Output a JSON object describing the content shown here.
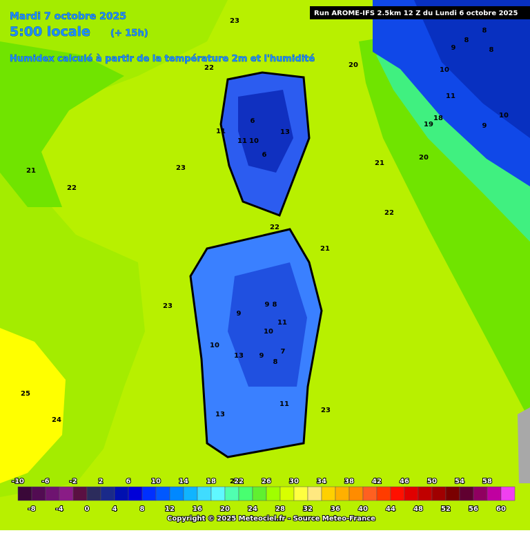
{
  "header": {
    "date": "Mardi 7 octobre 2025",
    "time": "5:00 locale",
    "lead": "(+ 15h)",
    "subtitle": "Humidex calculé à partir de la température 2m et l'humidité",
    "run": "Run AROME-IFS 2.5km 12 Z du Lundi 6 octobre 2025"
  },
  "contour_labels": [
    23,
    22,
    20,
    8,
    8,
    9,
    8,
    10,
    11,
    10,
    9,
    19,
    18,
    6,
    13,
    11,
    11,
    10,
    6,
    21,
    23,
    21,
    20,
    22,
    22,
    22,
    21,
    9,
    8,
    9,
    11,
    10,
    7,
    13,
    9,
    8,
    10,
    23,
    11,
    23,
    13,
    25,
    24,
    22
  ],
  "colorbar": {
    "ticks": [
      -10,
      -8,
      -6,
      -4,
      -2,
      0,
      2,
      4,
      6,
      8,
      10,
      12,
      14,
      16,
      18,
      20,
      22,
      24,
      26,
      28,
      30,
      32,
      34,
      36,
      38,
      40,
      42,
      44,
      46,
      48,
      50,
      52,
      54,
      56,
      58,
      60
    ],
    "colors": [
      "#3a0838",
      "#520c52",
      "#6e1470",
      "#8a1c86",
      "#5a1042",
      "#2c2c5c",
      "#1a2a8a",
      "#0010b0",
      "#0000d8",
      "#0030ff",
      "#0058ff",
      "#0088ff",
      "#10b4ff",
      "#40dcff",
      "#60f8ff",
      "#50ffb0",
      "#48ff70",
      "#60f030",
      "#a0ff00",
      "#d8ff00",
      "#ffff40",
      "#ffe880",
      "#ffd000",
      "#ffb000",
      "#ff8c00",
      "#ff6020",
      "#ff3c00",
      "#ff1000",
      "#e00000",
      "#c00000",
      "#a00000",
      "#7a0000",
      "#600030",
      "#900060",
      "#c000a0",
      "#f040f0"
    ]
  },
  "footer": "Copyright © 2025 Meteociel.fr - Source Meteo-France"
}
